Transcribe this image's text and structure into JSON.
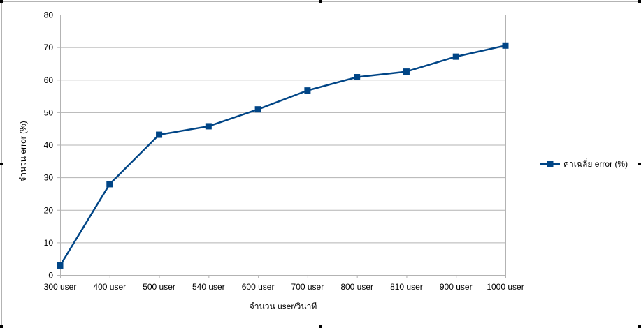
{
  "chart_data": {
    "type": "line",
    "title": "",
    "xlabel": "จำนวน user/วินาที",
    "ylabel": "จำนวน error (%)",
    "categories": [
      "300 user",
      "400 user",
      "500 user",
      "540 user",
      "600 user",
      "700 user",
      "800 user",
      "810 user",
      "900 user",
      "1000 user"
    ],
    "series": [
      {
        "name": "ค่าเฉลี่ย error (%)",
        "values": [
          2.9,
          27.9,
          43.1,
          45.7,
          50.9,
          56.7,
          60.8,
          62.5,
          67.1,
          70.5
        ]
      }
    ],
    "ylim": [
      0,
      80
    ],
    "yticks": [
      0,
      10,
      20,
      30,
      40,
      50,
      60,
      70,
      80
    ],
    "grid": true,
    "legend_position": "right",
    "colors": {
      "series": "#004586",
      "grid": "#b3b3b3",
      "axis": "#b3b3b3"
    },
    "marker": "square"
  }
}
